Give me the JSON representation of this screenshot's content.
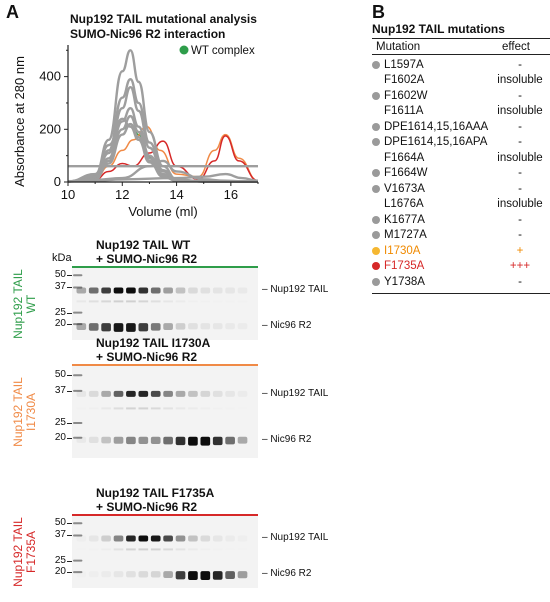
{
  "panel_a": {
    "letter": "A",
    "chart_title_line1": "Nup192 TAIL mutational analysis",
    "chart_title_line2": "SUMO-Nic96 R2 interaction",
    "legend": {
      "label": "WT complex",
      "color": "#2e9d4a"
    },
    "y_axis_label": "Absorbance at 280 nm",
    "x_axis_label": "Volume (ml)",
    "y_ticks": [
      "0",
      "200",
      "400"
    ],
    "x_ticks": [
      "10",
      "12",
      "14",
      "16"
    ]
  },
  "chart_data": {
    "type": "line",
    "title": "Nup192 TAIL mutational analysis SUMO-Nic96 R2 interaction",
    "xlabel": "Volume (ml)",
    "ylabel": "Absorbance at 280 nm",
    "xlim": [
      10,
      17
    ],
    "ylim": [
      0,
      520
    ],
    "grid": false,
    "legend_placement": "top-right",
    "series": [
      {
        "name": "WT complex",
        "color": "#2e9d4a",
        "x": [
          10,
          11,
          11.5,
          12,
          12.3,
          12.6,
          13,
          13.5,
          14,
          15,
          16,
          17
        ],
        "y": [
          2,
          15,
          90,
          200,
          220,
          180,
          95,
          30,
          8,
          2,
          2,
          1
        ]
      },
      {
        "color": "#f08a46",
        "x": [
          10,
          11,
          11.5,
          12,
          12.4,
          12.9,
          13.4,
          14,
          14.8,
          15.4,
          15.8,
          16.3,
          17
        ],
        "y": [
          2,
          10,
          60,
          120,
          160,
          210,
          120,
          30,
          20,
          120,
          180,
          90,
          5
        ]
      },
      {
        "color": "#d62828",
        "x": [
          10,
          11,
          11.5,
          12,
          12.4,
          13,
          13.5,
          14,
          14.8,
          15.4,
          15.8,
          16.3,
          17
        ],
        "y": [
          2,
          8,
          40,
          70,
          60,
          110,
          155,
          60,
          10,
          80,
          175,
          80,
          5
        ]
      },
      {
        "color": "#9e9e9e",
        "x": [
          10,
          11,
          11.5,
          12,
          12.3,
          12.6,
          13,
          13.5,
          14,
          15,
          16,
          17
        ],
        "y": [
          2,
          25,
          160,
          420,
          500,
          380,
          190,
          60,
          10,
          2,
          2,
          1
        ]
      },
      {
        "color": "#9e9e9e",
        "x": [
          10,
          11,
          11.5,
          12,
          12.3,
          12.6,
          13,
          13.5,
          14,
          15,
          16,
          17
        ],
        "y": [
          2,
          20,
          120,
          320,
          390,
          300,
          150,
          45,
          8,
          2,
          2,
          1
        ]
      },
      {
        "color": "#9e9e9e",
        "x": [
          10,
          11,
          11.5,
          12,
          12.3,
          12.6,
          13,
          13.5,
          14,
          15,
          16,
          17
        ],
        "y": [
          2,
          18,
          110,
          280,
          360,
          270,
          130,
          40,
          8,
          2,
          2,
          1
        ]
      },
      {
        "color": "#9e9e9e",
        "x": [
          10,
          11,
          11.5,
          12,
          12.3,
          12.6,
          13,
          13.5,
          14,
          15,
          16,
          17
        ],
        "y": [
          2,
          15,
          90,
          230,
          280,
          210,
          100,
          30,
          6,
          2,
          2,
          1
        ]
      },
      {
        "color": "#9e9e9e",
        "x": [
          10,
          11,
          11.5,
          12,
          12.3,
          12.6,
          13,
          13.5,
          14,
          15,
          16,
          17
        ],
        "y": [
          2,
          12,
          80,
          200,
          250,
          190,
          90,
          25,
          6,
          2,
          2,
          1
        ]
      },
      {
        "color": "#9e9e9e",
        "x": [
          10,
          11,
          11.5,
          12,
          12.3,
          12.6,
          13,
          13.5,
          14,
          15,
          16,
          17
        ],
        "y": [
          2,
          10,
          70,
          180,
          220,
          170,
          80,
          22,
          5,
          2,
          2,
          1
        ]
      },
      {
        "color": "#9e9e9e",
        "x": [
          10,
          11,
          11.5,
          12,
          12.3,
          12.6,
          13,
          13.5,
          14,
          15,
          16,
          17
        ],
        "y": [
          2,
          30,
          140,
          240,
          210,
          160,
          75,
          20,
          5,
          2,
          2,
          1
        ]
      },
      {
        "color": "#9e9e9e",
        "x": [
          10,
          11,
          11.5,
          12,
          12.3,
          12.6,
          13,
          13.5,
          14,
          15,
          16,
          17
        ],
        "y": [
          60,
          60,
          60,
          60,
          60,
          60,
          60,
          60,
          60,
          60,
          60,
          60
        ]
      },
      {
        "color": "#9e9e9e",
        "x": [
          10,
          11,
          12,
          13,
          13.5,
          14,
          15,
          15.8,
          16.4,
          17
        ],
        "y": [
          3,
          8,
          15,
          60,
          80,
          40,
          10,
          5,
          3,
          2
        ]
      },
      {
        "color": "#9e9e9e",
        "x": [
          10,
          11,
          12,
          14,
          15,
          15.8,
          16.4,
          17
        ],
        "y": [
          2,
          5,
          10,
          15,
          20,
          30,
          15,
          5
        ]
      }
    ]
  },
  "gels": [
    {
      "title_line1": "Nup192 TAIL WT",
      "title_line2": "+ SUMO-Nic96 R2",
      "side_label_line1": "Nup192 TAIL",
      "side_label_line2": "WT",
      "color": "#2e9d4a",
      "kda": "kDa",
      "markers": [
        "50",
        "37",
        "25",
        "20"
      ],
      "band_top": "Nup192 TAIL",
      "band_bottom": "Nic96 R2",
      "top_intensity": [
        0.3,
        0.55,
        0.75,
        0.95,
        0.95,
        0.8,
        0.55,
        0.35,
        0.2,
        0.1,
        0.08,
        0.06,
        0.05,
        0.04,
        0.03
      ],
      "bottom_intensity": [
        0.3,
        0.55,
        0.75,
        0.9,
        0.9,
        0.75,
        0.5,
        0.3,
        0.15,
        0.08,
        0.06,
        0.05,
        0.04,
        0.03,
        0.02
      ]
    },
    {
      "title_line1": "Nup192 TAIL I1730A",
      "title_line2": "+ SUMO-Nic96 R2",
      "side_label_line1": "Nup192 TAIL",
      "side_label_line2": "I1730A",
      "color": "#f08a46",
      "kda": "",
      "markers": [
        "50",
        "37",
        "25",
        "20"
      ],
      "band_top": "Nup192 TAIL",
      "band_bottom": "Nic96 R2",
      "top_intensity": [
        0.05,
        0.1,
        0.3,
        0.6,
        0.85,
        0.85,
        0.7,
        0.45,
        0.3,
        0.2,
        0.12,
        0.08,
        0.05,
        0.03,
        0.02
      ],
      "bottom_intensity": [
        0.04,
        0.08,
        0.2,
        0.35,
        0.45,
        0.4,
        0.4,
        0.55,
        0.8,
        0.95,
        0.95,
        0.8,
        0.55,
        0.3,
        0.15
      ]
    },
    {
      "title_line1": "Nup192 TAIL F1735A",
      "title_line2": "+ SUMO-Nic96 R2",
      "side_label_line1": "Nup192 TAIL",
      "side_label_line2": "F1735A",
      "color": "#d62828",
      "kda": "",
      "markers": [
        "50",
        "37",
        "25",
        "20"
      ],
      "band_top": "Nup192 TAIL",
      "band_bottom": "Nic96 R2",
      "top_intensity": [
        0.02,
        0.05,
        0.15,
        0.45,
        0.85,
        0.95,
        0.9,
        0.7,
        0.4,
        0.2,
        0.1,
        0.05,
        0.03,
        0.02,
        0.01
      ],
      "bottom_intensity": [
        0.01,
        0.02,
        0.03,
        0.05,
        0.08,
        0.1,
        0.12,
        0.3,
        0.75,
        0.95,
        0.95,
        0.85,
        0.6,
        0.35,
        0.15
      ]
    }
  ],
  "panel_b": {
    "letter": "B",
    "table_title": "Nup192 TAIL mutations",
    "col_mutation": "Mutation",
    "col_effect": "effect",
    "rows": [
      {
        "mutation": "L1597A",
        "effect": "-",
        "dot": "#9a9a9a",
        "text_color": "#111111"
      },
      {
        "mutation": "F1602A",
        "effect": "insoluble",
        "dot": "",
        "text_color": "#111111"
      },
      {
        "mutation": "F1602W",
        "effect": "-",
        "dot": "#9a9a9a",
        "text_color": "#111111"
      },
      {
        "mutation": "F1611A",
        "effect": "insoluble",
        "dot": "",
        "text_color": "#111111"
      },
      {
        "mutation": "DPE1614,15,16AAA",
        "effect": "-",
        "dot": "#9a9a9a",
        "text_color": "#111111"
      },
      {
        "mutation": "DPE1614,15,16APA",
        "effect": "-",
        "dot": "#9a9a9a",
        "text_color": "#111111"
      },
      {
        "mutation": "F1664A",
        "effect": "insoluble",
        "dot": "",
        "text_color": "#111111"
      },
      {
        "mutation": "F1664W",
        "effect": "-",
        "dot": "#9a9a9a",
        "text_color": "#111111"
      },
      {
        "mutation": "V1673A",
        "effect": "-",
        "dot": "#9a9a9a",
        "text_color": "#111111"
      },
      {
        "mutation": "L1676A",
        "effect": "insoluble",
        "dot": "",
        "text_color": "#111111"
      },
      {
        "mutation": "K1677A",
        "effect": "-",
        "dot": "#9a9a9a",
        "text_color": "#111111"
      },
      {
        "mutation": "M1727A",
        "effect": "-",
        "dot": "#9a9a9a",
        "text_color": "#111111"
      },
      {
        "mutation": "I1730A",
        "effect": "+",
        "dot": "#f5b731",
        "text_color": "#f08a00"
      },
      {
        "mutation": "F1735A",
        "effect": "+++",
        "dot": "#d62828",
        "text_color": "#d62828"
      },
      {
        "mutation": "Y1738A",
        "effect": "-",
        "dot": "#9a9a9a",
        "text_color": "#111111"
      }
    ]
  }
}
